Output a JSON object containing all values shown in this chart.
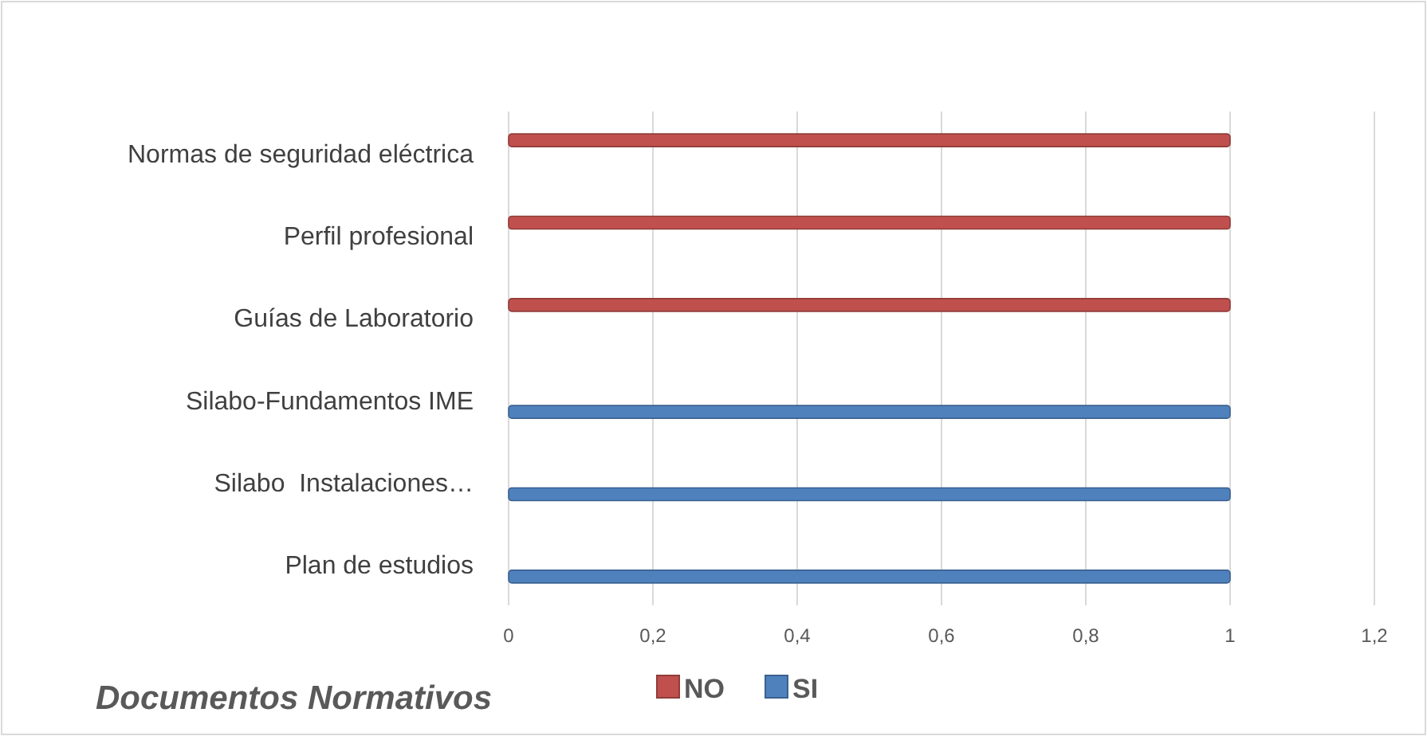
{
  "chart_data": {
    "type": "bar",
    "orientation": "horizontal",
    "title": "Documentos Normativos",
    "categories": [
      "Normas de seguridad eléctrica",
      "Perfil profesional",
      "Guías de Laboratorio",
      "Silabo-Fundamentos IME",
      "Silabo  Instalaciones…",
      "Plan de estudios"
    ],
    "series": [
      {
        "name": "NO",
        "color": "#c0504d",
        "values": [
          1,
          1,
          1,
          null,
          null,
          null
        ]
      },
      {
        "name": "SI",
        "color": "#4f81bd",
        "values": [
          null,
          null,
          null,
          1,
          1,
          1
        ]
      }
    ],
    "xlim": [
      0,
      1.2
    ],
    "xticks": [
      0,
      {
        "value": 0.2,
        "label": "0,2"
      },
      {
        "value": 0.4,
        "label": "0,4"
      },
      {
        "value": 0.6,
        "label": "0,6"
      },
      {
        "value": 0.8,
        "label": "0,8"
      },
      1,
      {
        "value": 1.2,
        "label": "1,2"
      }
    ],
    "grid": "x",
    "legend": "bottom"
  }
}
